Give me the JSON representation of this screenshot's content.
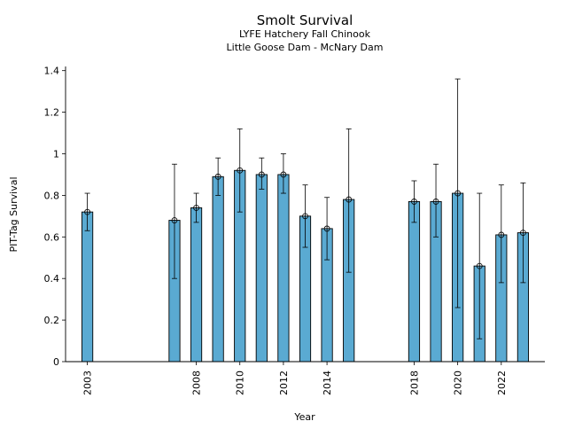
{
  "chart_data": {
    "type": "bar",
    "title": "Smolt Survival",
    "subtitle_lines": [
      "LYFE Hatchery Fall Chinook",
      "Little Goose Dam - McNary Dam"
    ],
    "xlabel": "Year",
    "ylabel": "PIT-Tag Survival",
    "x": [
      2003,
      2007,
      2008,
      2009,
      2010,
      2011,
      2012,
      2013,
      2014,
      2015,
      2018,
      2019,
      2020,
      2021,
      2022,
      2023
    ],
    "values": [
      0.72,
      0.68,
      0.74,
      0.89,
      0.92,
      0.9,
      0.9,
      0.7,
      0.64,
      0.78,
      0.77,
      0.77,
      0.81,
      0.46,
      0.61,
      0.62
    ],
    "error_low": [
      0.63,
      0.4,
      0.67,
      0.8,
      0.72,
      0.83,
      0.81,
      0.55,
      0.49,
      0.43,
      0.67,
      0.6,
      0.26,
      0.11,
      0.38,
      0.38
    ],
    "error_high": [
      0.81,
      0.95,
      0.81,
      0.98,
      1.12,
      0.98,
      1.0,
      0.85,
      0.79,
      1.12,
      0.87,
      0.95,
      1.36,
      0.81,
      0.85,
      0.86
    ],
    "xticks": [
      2003,
      2008,
      2010,
      2012,
      2014,
      2018,
      2020,
      2022
    ],
    "xlim": [
      2002,
      2024
    ],
    "ylim": [
      0,
      1.42
    ],
    "yticks": [
      0,
      0.2,
      0.4,
      0.6,
      0.8,
      1,
      1.2,
      1.4
    ],
    "ytick_labels": [
      "0",
      "0.2",
      "0.4",
      "0.6",
      "0.8",
      "1",
      "1.2",
      "1.4"
    ],
    "grid": false,
    "colors": {
      "bar": "#5aaad2",
      "edge": "#000000"
    }
  }
}
